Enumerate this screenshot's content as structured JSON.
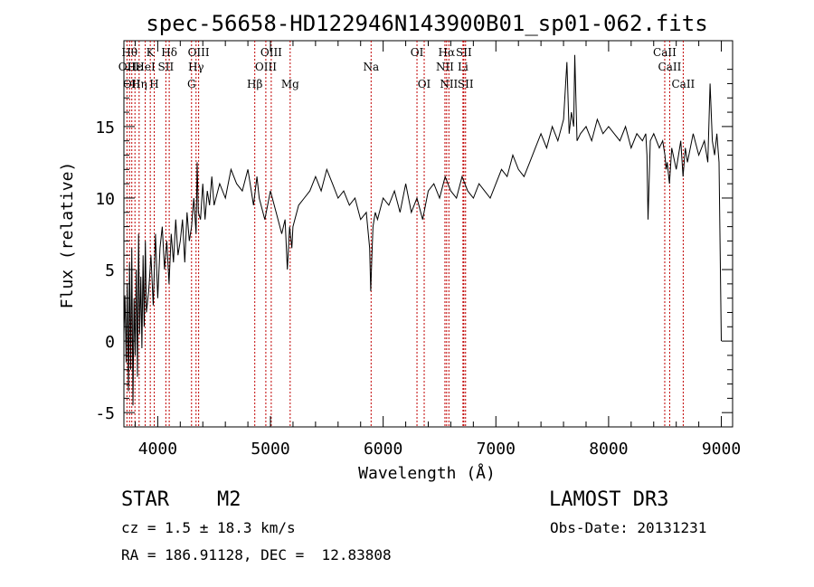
{
  "chart_data": {
    "type": "line",
    "title": "spec-56658-HD122946N143900B01_sp01-062.fits",
    "xlabel": "Wavelength (Å)",
    "ylabel": "Flux (relative)",
    "xlim": [
      3700,
      9100
    ],
    "ylim": [
      -6,
      21
    ],
    "x_ticks": [
      4000,
      5000,
      6000,
      7000,
      8000,
      9000
    ],
    "y_ticks": [
      -5,
      0,
      5,
      10,
      15
    ],
    "grid": false,
    "spectrum": {
      "x": [
        3700,
        3710,
        3720,
        3730,
        3740,
        3750,
        3760,
        3770,
        3780,
        3790,
        3800,
        3810,
        3820,
        3830,
        3840,
        3850,
        3860,
        3870,
        3880,
        3890,
        3900,
        3920,
        3940,
        3960,
        3980,
        4000,
        4020,
        4040,
        4060,
        4080,
        4100,
        4120,
        4140,
        4160,
        4180,
        4200,
        4220,
        4240,
        4260,
        4280,
        4300,
        4320,
        4340,
        4350,
        4360,
        4380,
        4400,
        4420,
        4440,
        4460,
        4480,
        4500,
        4550,
        4600,
        4650,
        4700,
        4750,
        4800,
        4850,
        4880,
        4900,
        4950,
        5000,
        5050,
        5100,
        5130,
        5150,
        5170,
        5190,
        5200,
        5250,
        5300,
        5350,
        5400,
        5450,
        5500,
        5550,
        5600,
        5650,
        5700,
        5750,
        5800,
        5850,
        5880,
        5890,
        5900,
        5910,
        5930,
        5950,
        6000,
        6050,
        6100,
        6150,
        6200,
        6250,
        6300,
        6350,
        6400,
        6450,
        6500,
        6550,
        6600,
        6650,
        6700,
        6750,
        6800,
        6850,
        6900,
        6950,
        7000,
        7050,
        7100,
        7150,
        7200,
        7250,
        7300,
        7350,
        7400,
        7450,
        7500,
        7550,
        7600,
        7630,
        7650,
        7670,
        7690,
        7700,
        7720,
        7750,
        7800,
        7850,
        7900,
        7950,
        8000,
        8050,
        8100,
        8150,
        8200,
        8250,
        8300,
        8330,
        8340,
        8350,
        8370,
        8400,
        8450,
        8480,
        8500,
        8510,
        8520,
        8540,
        8560,
        8600,
        8620,
        8640,
        8660,
        8680,
        8700,
        8750,
        8800,
        8850,
        8880,
        8900,
        8920,
        8940,
        8960,
        8980,
        9000
      ],
      "y": [
        0.5,
        3.2,
        -1.5,
        4.0,
        -3.5,
        5.5,
        -2.0,
        6.5,
        -4.5,
        3.0,
        -1.0,
        5.0,
        -2.5,
        7.5,
        0.5,
        4.5,
        -0.5,
        6.0,
        1.0,
        7.0,
        2.0,
        3.5,
        6.0,
        2.5,
        7.5,
        3.0,
        6.5,
        8.0,
        5.0,
        7.0,
        4.0,
        7.5,
        5.5,
        8.5,
        6.0,
        7.0,
        8.5,
        5.5,
        9.0,
        7.0,
        8.0,
        10.0,
        7.5,
        12.5,
        9.0,
        8.5,
        11.0,
        8.5,
        10.5,
        9.5,
        11.5,
        9.5,
        11.0,
        10.0,
        12.0,
        11.0,
        10.5,
        12.0,
        9.5,
        11.5,
        10.0,
        8.5,
        10.5,
        9.0,
        7.5,
        8.5,
        5.0,
        8.0,
        6.5,
        8.0,
        9.5,
        10.0,
        10.5,
        11.5,
        10.5,
        12.0,
        11.0,
        10.0,
        10.5,
        9.5,
        10.0,
        8.5,
        9.0,
        6.5,
        3.5,
        6.0,
        8.0,
        9.0,
        8.5,
        10.0,
        9.5,
        10.5,
        9.0,
        11.0,
        9.0,
        10.0,
        8.5,
        10.5,
        11.0,
        10.0,
        11.5,
        10.5,
        10.0,
        11.5,
        10.5,
        10.0,
        11.0,
        10.5,
        10.0,
        11.0,
        12.0,
        11.5,
        13.0,
        12.0,
        11.5,
        12.5,
        13.5,
        14.5,
        13.5,
        15.0,
        14.0,
        15.5,
        19.5,
        14.5,
        16.0,
        15.0,
        20.0,
        14.0,
        14.5,
        15.0,
        14.0,
        15.5,
        14.5,
        15.0,
        14.5,
        14.0,
        15.0,
        13.5,
        14.5,
        14.0,
        14.5,
        13.0,
        8.5,
        14.0,
        14.5,
        13.5,
        14.0,
        13.0,
        12.0,
        12.5,
        11.0,
        13.5,
        12.0,
        13.0,
        14.0,
        11.5,
        13.5,
        12.5,
        14.5,
        13.0,
        14.0,
        12.5,
        18.0,
        14.0,
        13.0,
        14.5,
        12.5,
        0.0
      ]
    },
    "lines": [
      {
        "x": 3727,
        "label": "OII",
        "row": 2
      },
      {
        "x": 3750,
        "label": "Hθ",
        "row": 1
      },
      {
        "x": 3770,
        "label": "OII",
        "row": 3
      },
      {
        "x": 3798,
        "label": "Hε",
        "row": 2
      },
      {
        "x": 3835,
        "label": "Hη",
        "row": 3
      },
      {
        "x": 3889,
        "label": "HeI",
        "row": 2
      },
      {
        "x": 3934,
        "label": "K",
        "row": 1
      },
      {
        "x": 3969,
        "label": "H",
        "row": 3
      },
      {
        "x": 4072,
        "label": "SII",
        "row": 2
      },
      {
        "x": 4102,
        "label": "Hδ",
        "row": 1
      },
      {
        "x": 4300,
        "label": "G",
        "row": 3
      },
      {
        "x": 4340,
        "label": "Hγ",
        "row": 2
      },
      {
        "x": 4363,
        "label": "OIII",
        "row": 1
      },
      {
        "x": 4861,
        "label": "Hβ",
        "row": 3
      },
      {
        "x": 4959,
        "label": "OIII",
        "row": 2
      },
      {
        "x": 5007,
        "label": "OIII",
        "row": 1
      },
      {
        "x": 5175,
        "label": "Mg",
        "row": 3
      },
      {
        "x": 5893,
        "label": "Na",
        "row": 2
      },
      {
        "x": 6300,
        "label": "OI",
        "row": 1
      },
      {
        "x": 6364,
        "label": "OI",
        "row": 3
      },
      {
        "x": 6548,
        "label": "NII",
        "row": 2
      },
      {
        "x": 6563,
        "label": "Hα",
        "row": 1
      },
      {
        "x": 6583,
        "label": "NII",
        "row": 3
      },
      {
        "x": 6708,
        "label": "Li",
        "row": 2
      },
      {
        "x": 6716,
        "label": "SII",
        "row": 1
      },
      {
        "x": 6731,
        "label": "SII",
        "row": 3
      },
      {
        "x": 8498,
        "label": "CaII",
        "row": 1
      },
      {
        "x": 8542,
        "label": "CaII",
        "row": 2
      },
      {
        "x": 8662,
        "label": "CaII",
        "row": 3
      }
    ]
  },
  "info": {
    "class_label": "STAR",
    "subclass": "M2",
    "survey": "LAMOST DR3",
    "redshift": "cz = 1.5 ± 18.3 km/s",
    "obs_date": "Obs-Date: 20131231",
    "coords": "RA = 186.91128, DEC =  12.83808"
  },
  "colors": {
    "line_marker": "#c00000",
    "spectrum": "#000000",
    "axis": "#000000"
  }
}
